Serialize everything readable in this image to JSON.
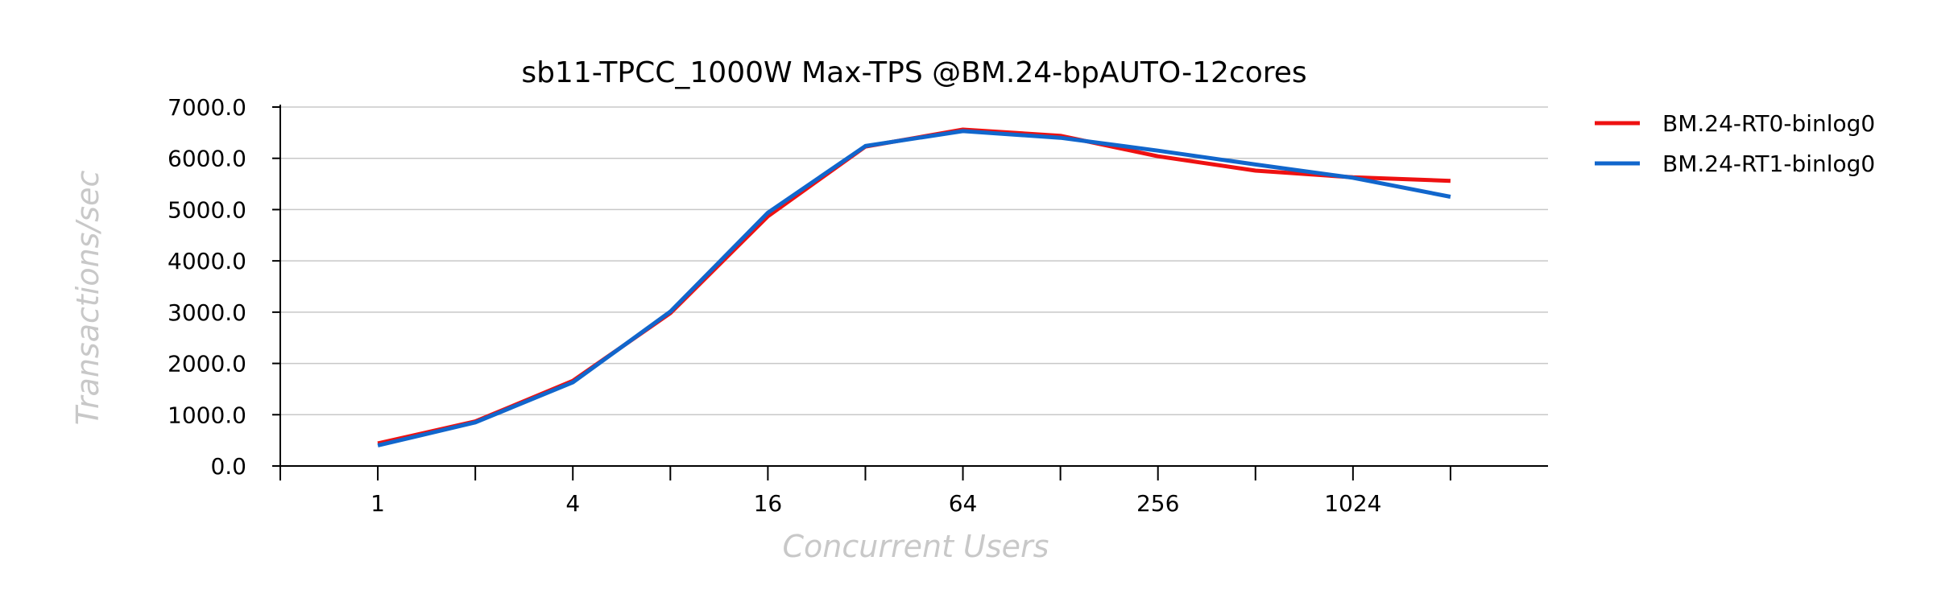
{
  "chart_data": {
    "type": "line",
    "title": "sb11-TPCC_1000W Max-TPS @BM.24-bpAUTO-12cores",
    "xlabel": "Concurrent Users",
    "ylabel": "Transactions/sec",
    "x": [
      1,
      2,
      4,
      8,
      16,
      32,
      64,
      128,
      256,
      512,
      1024,
      2048
    ],
    "x_scale": "log2",
    "xlim": [
      0.5,
      4096
    ],
    "x_tick_values": [
      0.5,
      1,
      2,
      4,
      8,
      16,
      32,
      64,
      128,
      256,
      512,
      1024,
      2048
    ],
    "x_tick_labels": [
      {
        "x": 1,
        "text": "1"
      },
      {
        "x": 4,
        "text": "4"
      },
      {
        "x": 16,
        "text": "16"
      },
      {
        "x": 64,
        "text": "64"
      },
      {
        "x": 256,
        "text": "256"
      },
      {
        "x": 1024,
        "text": "1024"
      }
    ],
    "ylim": [
      0,
      7000
    ],
    "y_ticks": [
      {
        "value": 0,
        "text": "0.0"
      },
      {
        "value": 1000,
        "text": "1000.0"
      },
      {
        "value": 2000,
        "text": "2000.0"
      },
      {
        "value": 3000,
        "text": "3000.0"
      },
      {
        "value": 4000,
        "text": "4000.0"
      },
      {
        "value": 5000,
        "text": "5000.0"
      },
      {
        "value": 6000,
        "text": "6000.0"
      },
      {
        "value": 7000,
        "text": "7000.0"
      }
    ],
    "grid": "horizontal",
    "legend_position": "right-top",
    "series": [
      {
        "name": "BM.24-RT0-binlog0",
        "color": "#ee1111",
        "values": [
          440,
          870,
          1660,
          2980,
          4870,
          6230,
          6560,
          6440,
          6040,
          5760,
          5630,
          5560
        ]
      },
      {
        "name": "BM.24-RT1-binlog0",
        "color": "#1166cc",
        "values": [
          400,
          850,
          1630,
          3010,
          4940,
          6240,
          6530,
          6400,
          6150,
          5880,
          5620,
          5250
        ]
      }
    ]
  }
}
